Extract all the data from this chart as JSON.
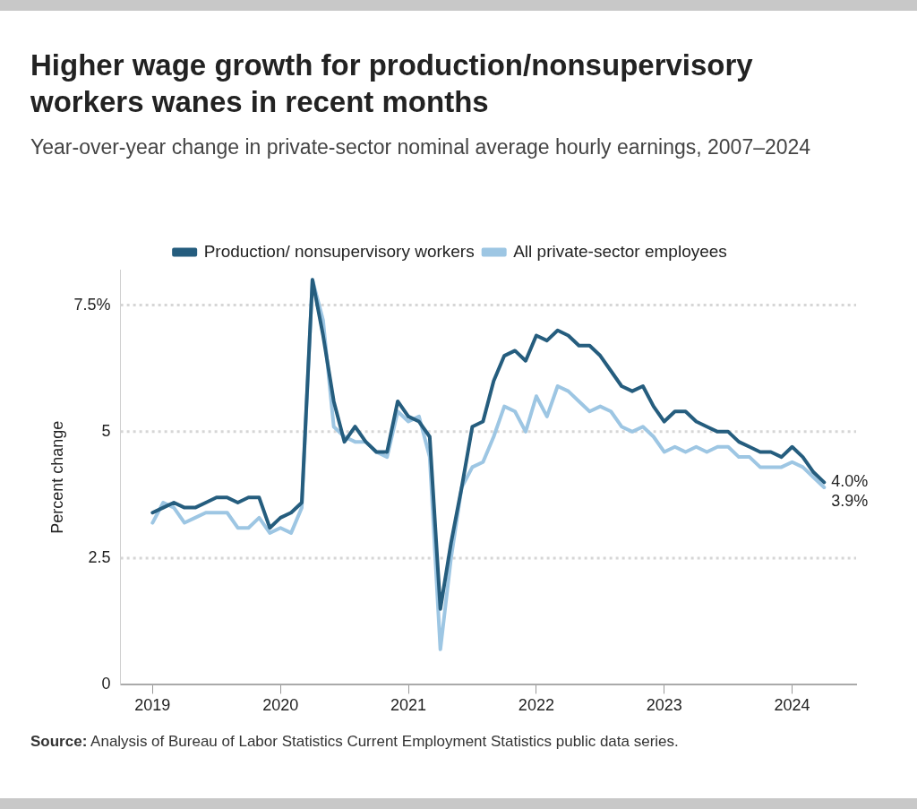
{
  "chart_data": {
    "type": "line",
    "title": "Higher wage growth for production/nonsupervisory workers wanes in recent months",
    "subtitle": "Year-over-year change in private-sector nominal average hourly earnings, 2007–2024",
    "ylabel": "Percent change",
    "x": [
      "2019-01",
      "2019-02",
      "2019-03",
      "2019-04",
      "2019-05",
      "2019-06",
      "2019-07",
      "2019-08",
      "2019-09",
      "2019-10",
      "2019-11",
      "2019-12",
      "2020-01",
      "2020-02",
      "2020-03",
      "2020-04",
      "2020-05",
      "2020-06",
      "2020-07",
      "2020-08",
      "2020-09",
      "2020-10",
      "2020-11",
      "2020-12",
      "2021-01",
      "2021-02",
      "2021-03",
      "2021-04",
      "2021-05",
      "2021-06",
      "2021-07",
      "2021-08",
      "2021-09",
      "2021-10",
      "2021-11",
      "2021-12",
      "2022-01",
      "2022-02",
      "2022-03",
      "2022-04",
      "2022-05",
      "2022-06",
      "2022-07",
      "2022-08",
      "2022-09",
      "2022-10",
      "2022-11",
      "2022-12",
      "2023-01",
      "2023-02",
      "2023-03",
      "2023-04",
      "2023-05",
      "2023-06",
      "2023-07",
      "2023-08",
      "2023-09",
      "2023-10",
      "2023-11",
      "2023-12",
      "2024-01",
      "2024-02",
      "2024-03",
      "2024-04"
    ],
    "series": [
      {
        "name": "Production/ nonsupervisory workers",
        "color": "#255d7e",
        "values": [
          3.4,
          3.5,
          3.6,
          3.5,
          3.5,
          3.6,
          3.7,
          3.7,
          3.6,
          3.7,
          3.7,
          3.1,
          3.3,
          3.4,
          3.6,
          8.0,
          6.9,
          5.6,
          4.8,
          5.1,
          4.8,
          4.6,
          4.6,
          5.6,
          5.3,
          5.2,
          4.9,
          1.5,
          2.8,
          3.9,
          5.1,
          5.2,
          6.0,
          6.5,
          6.6,
          6.4,
          6.9,
          6.8,
          7.0,
          6.9,
          6.7,
          6.7,
          6.5,
          6.2,
          5.9,
          5.8,
          5.9,
          5.5,
          5.2,
          5.4,
          5.4,
          5.2,
          5.1,
          5.0,
          5.0,
          4.8,
          4.7,
          4.6,
          4.6,
          4.5,
          4.7,
          4.5,
          4.2,
          4.0
        ],
        "value_labels": [
          null,
          null,
          null,
          null,
          null,
          null,
          null,
          null,
          null,
          null,
          null,
          null,
          null,
          null,
          null,
          null,
          null,
          null,
          null,
          null,
          null,
          null,
          null,
          null,
          null,
          null,
          null,
          null,
          null,
          null,
          null,
          null,
          null,
          null,
          null,
          null,
          null,
          null,
          null,
          null,
          null,
          null,
          null,
          null,
          null,
          null,
          null,
          null,
          null,
          null,
          null,
          null,
          null,
          null,
          null,
          null,
          null,
          null,
          null,
          null,
          null,
          null,
          null,
          "4.0%"
        ]
      },
      {
        "name": "All private-sector employees",
        "color": "#9dc6e3",
        "values": [
          3.2,
          3.6,
          3.5,
          3.2,
          3.3,
          3.4,
          3.4,
          3.4,
          3.1,
          3.1,
          3.3,
          3.0,
          3.1,
          3.0,
          3.5,
          8.0,
          7.2,
          5.1,
          4.9,
          4.8,
          4.8,
          4.6,
          4.5,
          5.4,
          5.2,
          5.3,
          4.5,
          0.7,
          2.5,
          3.9,
          4.3,
          4.4,
          4.9,
          5.5,
          5.4,
          5.0,
          5.7,
          5.3,
          5.9,
          5.8,
          5.6,
          5.4,
          5.5,
          5.4,
          5.1,
          5.0,
          5.1,
          4.9,
          4.6,
          4.7,
          4.6,
          4.7,
          4.6,
          4.7,
          4.7,
          4.5,
          4.5,
          4.3,
          4.3,
          4.3,
          4.4,
          4.3,
          4.1,
          3.9
        ],
        "value_labels": [
          null,
          null,
          null,
          null,
          null,
          null,
          null,
          null,
          null,
          null,
          null,
          null,
          null,
          null,
          null,
          null,
          null,
          null,
          null,
          null,
          null,
          null,
          null,
          null,
          null,
          null,
          null,
          null,
          null,
          null,
          null,
          null,
          null,
          null,
          null,
          null,
          null,
          null,
          null,
          null,
          null,
          null,
          null,
          null,
          null,
          null,
          null,
          null,
          null,
          null,
          null,
          null,
          null,
          null,
          null,
          null,
          null,
          null,
          null,
          null,
          null,
          null,
          null,
          "3.9%"
        ]
      }
    ],
    "xlim": [
      "2018-10",
      "2024-07"
    ],
    "xticks": [
      "2019",
      "2020",
      "2021",
      "2022",
      "2023",
      "2024"
    ],
    "ylim": [
      0,
      8.2
    ],
    "yticks": [
      0,
      2.5,
      5,
      {
        "value": 7.5,
        "label": "7.5%"
      }
    ],
    "grid": "y",
    "legend": "top",
    "marker": "none",
    "line_style": "solid",
    "annotations": [
      "Source: Analysis of Bureau of Labor Statistics Current Employment Statistics public data series."
    ]
  }
}
